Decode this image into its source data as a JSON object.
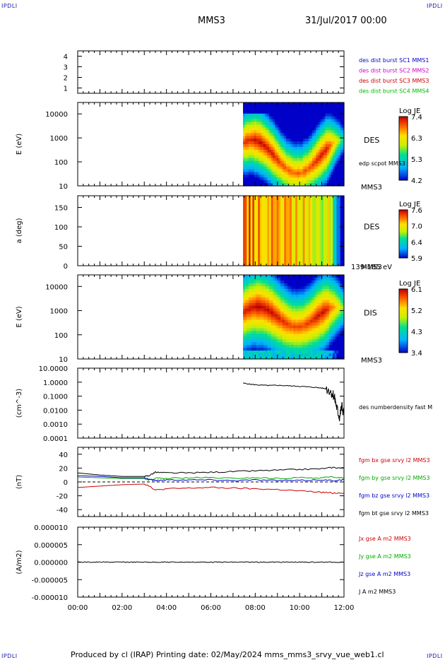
{
  "corners": {
    "tl": "IPDLI",
    "tr": "IPDLI",
    "bl": "IPDLI",
    "br": "IPDLI"
  },
  "header": {
    "spacecraft": "MMS3",
    "date": "31/Jul/2017 00:00"
  },
  "footer": "Produced by cl (IRAP)   Printing date: 02/May/2024   mms_mms3_srvy_vue_web1.cl",
  "colors": {
    "mms1": "#0000cc",
    "mms2": "#cc00cc",
    "mms3": "#cc0000",
    "mms4": "#00bb00",
    "black": "#000000"
  },
  "chart_data": [
    {
      "type": "line",
      "panel": "burst",
      "ylim": [
        0.5,
        4.5
      ],
      "ticks": [
        "1",
        "2",
        "3",
        "4"
      ],
      "tick_values": [
        1,
        2,
        3,
        4
      ],
      "legend": [
        {
          "text": "des dist burst SC1 MMS1",
          "color": "#0000cc"
        },
        {
          "text": "des dist burst SC2 MMS2",
          "color": "#cc00cc"
        },
        {
          "text": "des dist burst SC3 MMS3",
          "color": "#cc0000"
        },
        {
          "text": "des dist burst SC4 MMS4",
          "color": "#00bb00"
        }
      ]
    },
    {
      "type": "heatmap",
      "panel": "des_energy",
      "ylabel": "E (eV)",
      "ylog": true,
      "ylim": [
        10,
        30000
      ],
      "ticks": [
        "10000",
        "1000",
        "100",
        "10"
      ],
      "tick_values": [
        10000,
        1000,
        100,
        10
      ],
      "data_start_hours": 7.45,
      "instrument": "DES",
      "instrument_sub": "MMS3",
      "extra_label": "edp scpot MMS3",
      "colorbar": {
        "title": "Log JE",
        "ticks": [
          "7.4",
          "6.3",
          "5.3",
          "4.2"
        ]
      }
    },
    {
      "type": "heatmap",
      "panel": "des_pitch",
      "ylabel": "a (deg)",
      "ylim": [
        0,
        180
      ],
      "ticks": [
        "150",
        "100",
        "50",
        "0"
      ],
      "tick_values": [
        150,
        100,
        50,
        0
      ],
      "data_start_hours": 7.45,
      "instrument": "DES",
      "instrument_sub": "MMS3",
      "energy_range": "139-185 eV",
      "colorbar": {
        "title": "Log JE",
        "ticks": [
          "7.6",
          "7.0",
          "6.4",
          "5.9"
        ]
      }
    },
    {
      "type": "heatmap",
      "panel": "dis_energy",
      "ylabel": "E (eV)",
      "ylog": true,
      "ylim": [
        10,
        30000
      ],
      "ticks": [
        "10000",
        "1000",
        "100",
        "10"
      ],
      "tick_values": [
        10000,
        1000,
        100,
        10
      ],
      "data_start_hours": 7.45,
      "instrument": "DIS",
      "instrument_sub": "MMS3",
      "colorbar": {
        "title": "Log JE",
        "ticks": [
          "6.1",
          "5.2",
          "4.3",
          "3.4"
        ]
      }
    },
    {
      "type": "line",
      "panel": "density",
      "ylabel": "(cm^-3)",
      "ylog": true,
      "ylim": [
        0.0001,
        10
      ],
      "ticks": [
        "10.0000",
        "1.0000",
        "0.1000",
        "0.0100",
        "0.0010",
        "0.0001"
      ],
      "tick_values": [
        10,
        1,
        0.1,
        0.01,
        0.001,
        0.0001
      ],
      "series": [
        {
          "name": "des numberdensity fast M",
          "color": "#000000",
          "x": [
            7.45,
            7.8,
            8.2,
            8.6,
            9.0,
            9.5,
            10.0,
            10.5,
            11.0,
            11.3,
            11.5,
            11.6,
            11.7,
            11.8,
            11.9,
            12.0
          ],
          "y": [
            0.85,
            0.7,
            0.62,
            0.58,
            0.6,
            0.55,
            0.5,
            0.45,
            0.38,
            0.3,
            0.15,
            0.05,
            0.01,
            0.003,
            0.02,
            0.005
          ]
        }
      ]
    },
    {
      "type": "line",
      "panel": "bfield",
      "ylabel": "(nT)",
      "ylim": [
        -50,
        50
      ],
      "ticks": [
        "40",
        "20",
        "0",
        "-20",
        "-40"
      ],
      "tick_values": [
        40,
        20,
        0,
        -20,
        -40
      ],
      "x": [
        0,
        1,
        2,
        3,
        3.2,
        3.5,
        4,
        5,
        6,
        7,
        8,
        9,
        10,
        11,
        11.5,
        12
      ],
      "series": [
        {
          "name": "fgm bx gse srvy l2 MMS3",
          "color": "#cc0000",
          "y": [
            -8,
            -6,
            -4,
            -3,
            -5,
            -12,
            -10,
            -9,
            -8,
            -9,
            -10,
            -11,
            -13,
            -15,
            -16,
            -16
          ]
        },
        {
          "name": "fgm by gse srvy l2 MMS3",
          "color": "#00aa00",
          "y": [
            7,
            6,
            5,
            5,
            3,
            5,
            5,
            6,
            6,
            5,
            6,
            5,
            6,
            6,
            7,
            6
          ]
        },
        {
          "name": "fgm bz gse srvy l2 MMS3",
          "color": "#0000cc",
          "y": [
            9,
            8,
            6,
            6,
            4,
            2,
            3,
            3,
            3,
            2,
            3,
            2,
            2,
            3,
            2,
            3
          ]
        },
        {
          "name": "fgm bt gse srvy l2 MMS3",
          "color": "#000000",
          "y": [
            13,
            10,
            8,
            8,
            9,
            14,
            13,
            13,
            14,
            15,
            16,
            17,
            18,
            19,
            21,
            20
          ]
        }
      ]
    },
    {
      "type": "line",
      "panel": "current",
      "ylabel": "(A/m2)",
      "ylim": [
        -1e-05,
        1e-05
      ],
      "ticks": [
        "0.000010",
        "0.000005",
        "0.000000",
        "-0.000005",
        "-0.000010"
      ],
      "tick_values": [
        1e-05,
        5e-06,
        0,
        -5e-06,
        -1e-05
      ],
      "xticks": [
        "00:00",
        "02:00",
        "04:00",
        "06:00",
        "08:00",
        "10:00",
        "12:00"
      ],
      "xlim_hours": [
        0,
        12
      ],
      "series": [
        {
          "name": "Jx gse A m2 MMS3",
          "color": "#cc0000"
        },
        {
          "name": "Jy gse A m2 MMS3",
          "color": "#00aa00"
        },
        {
          "name": "Jz gse A m2 MMS3",
          "color": "#0000cc"
        },
        {
          "name": "J A m2 MMS3",
          "color": "#000000"
        }
      ]
    }
  ]
}
